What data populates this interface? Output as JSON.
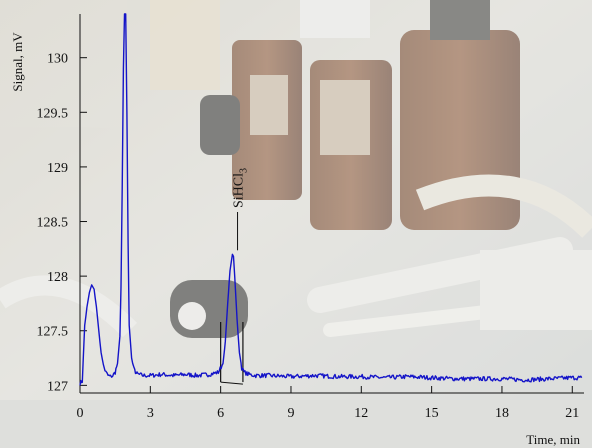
{
  "chart_data": {
    "type": "line",
    "xlabel": "Time, min",
    "ylabel": "Signal, mV",
    "xlim": [
      0,
      21.5
    ],
    "ylim": [
      126.93,
      130.4
    ],
    "x_ticks": [
      0,
      3,
      6,
      9,
      12,
      15,
      18,
      21
    ],
    "y_ticks": [
      127,
      127.5,
      128,
      128.5,
      129,
      129.5,
      130
    ],
    "y_tick_labels": [
      "127",
      "127.5",
      "128",
      "128.5",
      "129",
      "129.5",
      "130"
    ],
    "grid": false,
    "line_color": "#1414c8",
    "background": "photo of laboratory glassware",
    "series": [
      {
        "x": [
          0.0,
          0.1,
          0.2,
          0.3,
          0.4,
          0.5,
          0.6,
          0.7,
          0.8,
          0.9,
          1.0,
          1.1,
          1.2,
          1.3,
          1.4,
          1.5,
          1.6,
          1.7,
          1.75,
          1.8,
          1.85,
          1.9,
          1.95,
          2.0,
          2.05,
          2.1,
          2.2,
          2.3,
          2.4,
          2.5,
          2.7,
          3.0,
          3.5,
          4.0,
          4.5,
          5.0,
          5.5,
          5.9,
          6.1,
          6.2,
          6.3,
          6.4,
          6.5,
          6.55,
          6.6,
          6.7,
          6.8,
          6.9,
          7.0,
          7.2,
          7.5,
          8.0,
          9.0,
          10.0,
          11.0,
          12.0,
          13.0,
          14.0,
          15.0,
          16.0,
          17.0,
          18.0,
          19.0,
          20.0,
          21.0,
          21.4
        ],
        "y": [
          127.02,
          127.04,
          127.55,
          127.72,
          127.85,
          127.92,
          127.88,
          127.72,
          127.5,
          127.3,
          127.18,
          127.12,
          127.09,
          127.08,
          127.09,
          127.12,
          127.2,
          127.45,
          127.9,
          128.8,
          129.9,
          130.4,
          130.4,
          129.5,
          128.3,
          127.55,
          127.25,
          127.15,
          127.11,
          127.1,
          127.09,
          127.09,
          127.1,
          127.09,
          127.1,
          127.09,
          127.1,
          127.12,
          127.2,
          127.4,
          127.75,
          128.05,
          128.2,
          128.18,
          128.0,
          127.6,
          127.3,
          127.16,
          127.12,
          127.1,
          127.09,
          127.09,
          127.08,
          127.09,
          127.08,
          127.08,
          127.07,
          127.08,
          127.07,
          127.06,
          127.06,
          127.06,
          127.05,
          127.06,
          127.07,
          127.07
        ]
      }
    ],
    "annotations": [
      {
        "label_base": "SiHCl",
        "label_subscript": "3",
        "peak_x": 6.55,
        "peak_y": 128.2
      }
    ],
    "baseline_markers": {
      "x_start": 6.0,
      "x_end": 6.95,
      "y": 127.03,
      "mark_top": 127.58
    }
  }
}
